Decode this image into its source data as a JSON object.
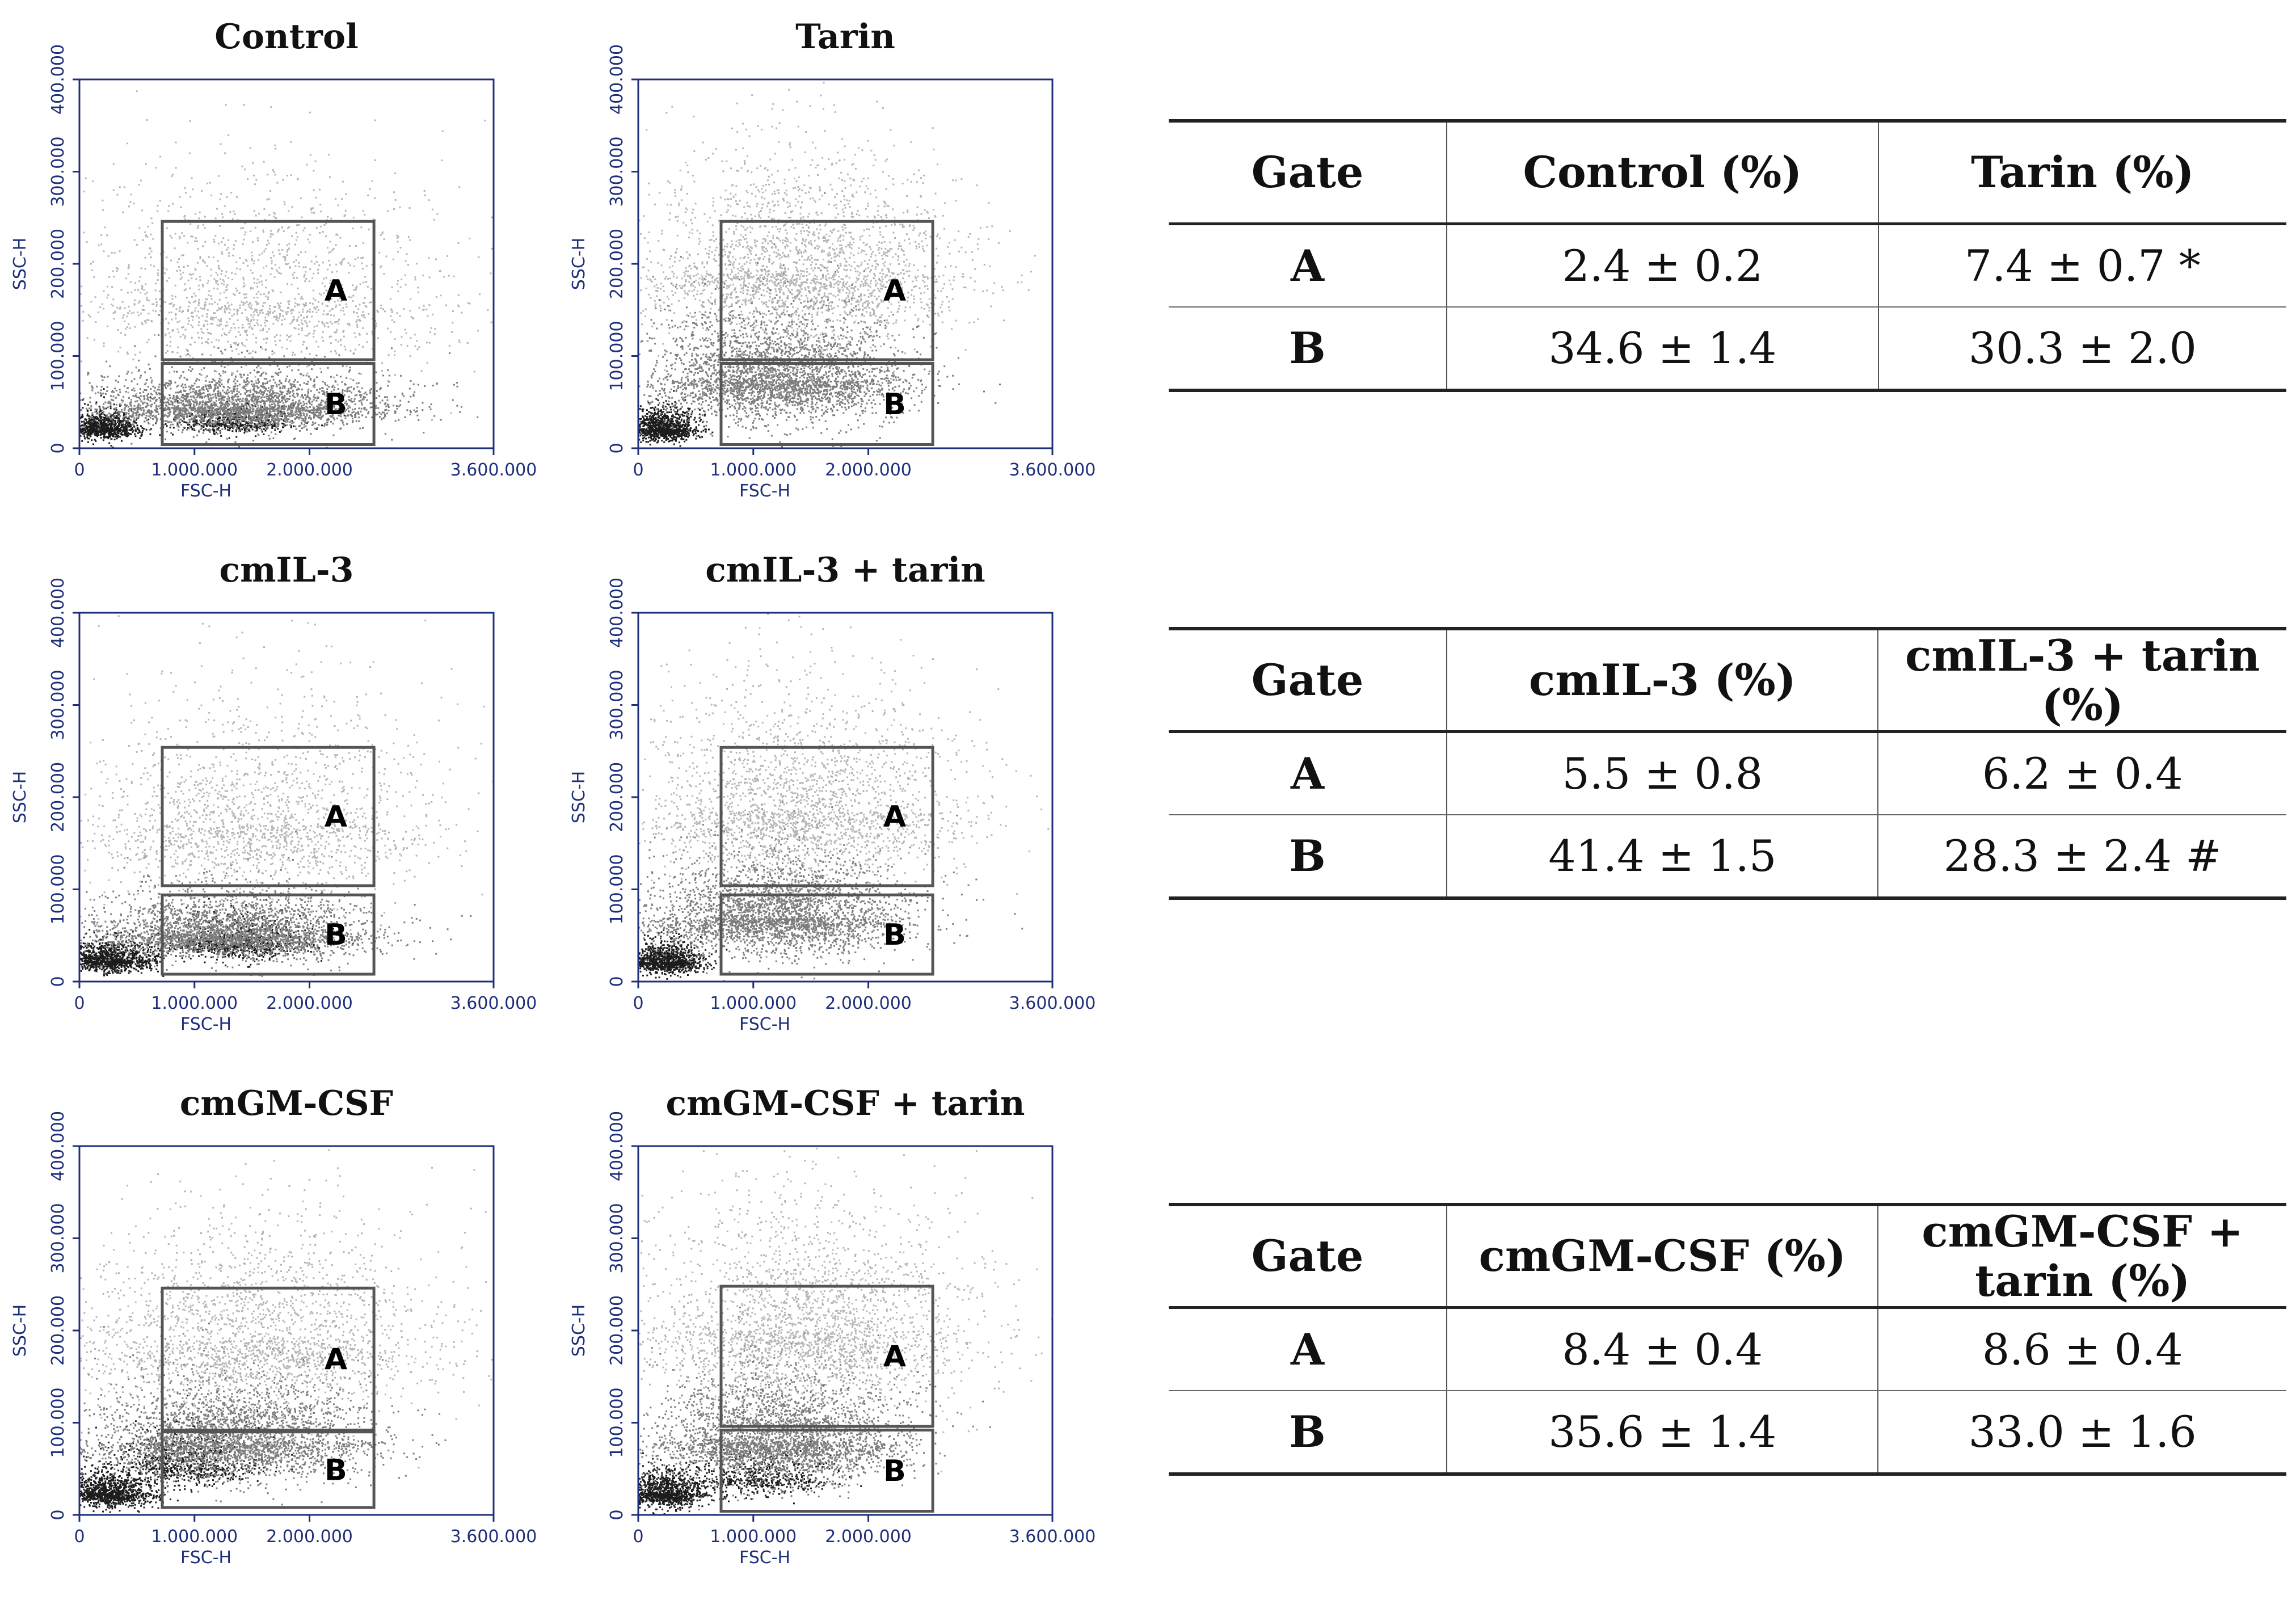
{
  "chart_data": [
    {
      "type": "scatter",
      "title": "Control",
      "xlabel": "FSC-H",
      "ylabel": "SSC-H",
      "xlim": [
        0,
        3600000
      ],
      "ylim": [
        0,
        400000
      ],
      "x_ticks": [
        "0",
        "1.000.000",
        "2.000.000",
        "3.600.000"
      ],
      "x_tick_values": [
        0,
        1000000,
        2000000,
        3600000
      ],
      "y_ticks": [
        "0",
        "100.000",
        "200.000",
        "300.000",
        "400.000"
      ],
      "y_tick_values": [
        0,
        100000,
        200000,
        300000,
        400000
      ],
      "gates": [
        {
          "label": "A",
          "x_range": [
            720000,
            2560000
          ],
          "y_range": [
            96000,
            246000
          ]
        },
        {
          "label": "B",
          "x_range": [
            720000,
            2560000
          ],
          "y_range": [
            4000,
            92000
          ]
        }
      ]
    },
    {
      "type": "scatter",
      "title": "Tarin",
      "xlabel": "FSC-H",
      "ylabel": "SSC-H",
      "xlim": [
        0,
        3600000
      ],
      "ylim": [
        0,
        400000
      ],
      "x_ticks": [
        "0",
        "1.000.000",
        "2.000.000",
        "3.600.000"
      ],
      "x_tick_values": [
        0,
        1000000,
        2000000,
        3600000
      ],
      "y_ticks": [
        "0",
        "100.000",
        "200.000",
        "300.000",
        "400.000"
      ],
      "y_tick_values": [
        0,
        100000,
        200000,
        300000,
        400000
      ],
      "gates": [
        {
          "label": "A",
          "x_range": [
            720000,
            2560000
          ],
          "y_range": [
            96000,
            246000
          ]
        },
        {
          "label": "B",
          "x_range": [
            720000,
            2560000
          ],
          "y_range": [
            4000,
            92000
          ]
        }
      ]
    },
    {
      "type": "scatter",
      "title": "cmIL-3",
      "xlabel": "FSC-H",
      "ylabel": "SSC-H",
      "xlim": [
        0,
        3600000
      ],
      "ylim": [
        0,
        400000
      ],
      "x_ticks": [
        "0",
        "1.000.000",
        "2.000.000",
        "3.600.000"
      ],
      "x_tick_values": [
        0,
        1000000,
        2000000,
        3600000
      ],
      "y_ticks": [
        "0",
        "100.000",
        "200.000",
        "300.000",
        "400.000"
      ],
      "y_tick_values": [
        0,
        100000,
        200000,
        300000,
        400000
      ],
      "gates": [
        {
          "label": "A",
          "x_range": [
            720000,
            2560000
          ],
          "y_range": [
            104000,
            254000
          ]
        },
        {
          "label": "B",
          "x_range": [
            720000,
            2560000
          ],
          "y_range": [
            8000,
            94000
          ]
        }
      ]
    },
    {
      "type": "scatter",
      "title": "cmIL-3 + tarin",
      "xlabel": "FSC-H",
      "ylabel": "SSC-H",
      "xlim": [
        0,
        3600000
      ],
      "ylim": [
        0,
        400000
      ],
      "x_ticks": [
        "0",
        "1.000.000",
        "2.000.000",
        "3.600.000"
      ],
      "x_tick_values": [
        0,
        1000000,
        2000000,
        3600000
      ],
      "y_ticks": [
        "0",
        "100.000",
        "200.000",
        "300.000",
        "400.000"
      ],
      "y_tick_values": [
        0,
        100000,
        200000,
        300000,
        400000
      ],
      "gates": [
        {
          "label": "A",
          "x_range": [
            720000,
            2560000
          ],
          "y_range": [
            104000,
            254000
          ]
        },
        {
          "label": "B",
          "x_range": [
            720000,
            2560000
          ],
          "y_range": [
            8000,
            94000
          ]
        }
      ]
    },
    {
      "type": "scatter",
      "title": "cmGM-CSF",
      "xlabel": "FSC-H",
      "ylabel": "SSC-H",
      "xlim": [
        0,
        3600000
      ],
      "ylim": [
        0,
        400000
      ],
      "x_ticks": [
        "0",
        "1.000.000",
        "2.000.000",
        "3.600.000"
      ],
      "x_tick_values": [
        0,
        1000000,
        2000000,
        3600000
      ],
      "y_ticks": [
        "0",
        "100.000",
        "200.000",
        "300.000",
        "400.000"
      ],
      "y_tick_values": [
        0,
        100000,
        200000,
        300000,
        400000
      ],
      "gates": [
        {
          "label": "A",
          "x_range": [
            720000,
            2560000
          ],
          "y_range": [
            92000,
            246000
          ]
        },
        {
          "label": "B",
          "x_range": [
            720000,
            2560000
          ],
          "y_range": [
            8000,
            90000
          ]
        }
      ]
    },
    {
      "type": "scatter",
      "title": "cmGM-CSF + tarin",
      "xlabel": "FSC-H",
      "ylabel": "SSC-H",
      "xlim": [
        0,
        3600000
      ],
      "ylim": [
        0,
        400000
      ],
      "x_ticks": [
        "0",
        "1.000.000",
        "2.000.000",
        "3.600.000"
      ],
      "x_tick_values": [
        0,
        1000000,
        2000000,
        3600000
      ],
      "y_ticks": [
        "0",
        "100.000",
        "200.000",
        "300.000",
        "400.000"
      ],
      "y_tick_values": [
        0,
        100000,
        200000,
        300000,
        400000
      ],
      "gates": [
        {
          "label": "A",
          "x_range": [
            720000,
            2560000
          ],
          "y_range": [
            96000,
            248000
          ]
        },
        {
          "label": "B",
          "x_range": [
            720000,
            2560000
          ],
          "y_range": [
            4000,
            92000
          ]
        }
      ]
    },
    {
      "type": "table",
      "columns": [
        "Gate",
        "Control (%)",
        "Tarin (%)"
      ],
      "rows": [
        [
          "A",
          "2.4 ± 0.2",
          "7.4 ± 0.7 *"
        ],
        [
          "B",
          "34.6 ± 1.4",
          "30.3 ± 2.0"
        ]
      ]
    },
    {
      "type": "table",
      "columns": [
        "Gate",
        "cmIL-3 (%)",
        "cmIL-3 + tarin (%)"
      ],
      "rows": [
        [
          "A",
          "5.5 ± 0.8",
          "6.2 ± 0.4"
        ],
        [
          "B",
          "41.4 ± 1.5",
          "28.3 ± 2.4 #"
        ]
      ]
    },
    {
      "type": "table",
      "columns": [
        "Gate",
        "cmGM-CSF (%)",
        "cmGM-CSF + tarin (%)"
      ],
      "rows": [
        [
          "A",
          "8.4 ± 0.4",
          "8.6 ± 0.4"
        ],
        [
          "B",
          "35.6 ± 1.4",
          "33.0 ± 1.6"
        ]
      ]
    }
  ],
  "colors": {
    "axis": "#1f2f7a",
    "gate_border": "#555555",
    "dot_dense": "#1c1c1c",
    "dot_mid": "#7d7d7d",
    "dot_sparse": "#b5b5b5"
  }
}
